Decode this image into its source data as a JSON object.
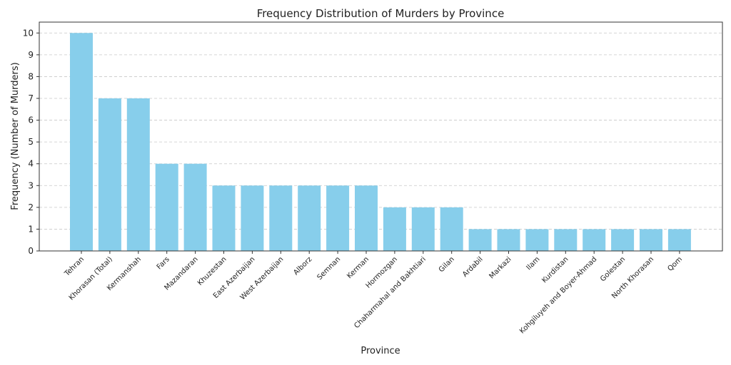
{
  "chart_data": {
    "type": "bar",
    "title": "Frequency Distribution of Murders by Province",
    "xlabel": "Province",
    "ylabel": "Frequency (Number of Murders)",
    "ylim": [
      0,
      10.5
    ],
    "yticks": [
      0,
      1,
      2,
      3,
      4,
      5,
      6,
      7,
      8,
      9,
      10
    ],
    "grid": "y-dashed",
    "bar_color": "#87ceeb",
    "categories": [
      "Tehran",
      "Khorasan (Total)",
      "Kermanshah",
      "Fars",
      "Mazandaran",
      "Khuzestan",
      "East Azerbaijan",
      "West Azerbaijan",
      "Alborz",
      "Semnan",
      "Kerman",
      "Hormozgan",
      "Chaharmahal and Bakhtiari",
      "Gilan",
      "Ardabil",
      "Markazi",
      "Ilam",
      "Kurdistan",
      "Kohgiluyeh and Boyer-Ahmad",
      "Golestan",
      "North Khorasan",
      "Qom"
    ],
    "values": [
      10,
      7,
      7,
      4,
      4,
      3,
      3,
      3,
      3,
      3,
      3,
      2,
      2,
      2,
      1,
      1,
      1,
      1,
      1,
      1,
      1,
      1
    ]
  }
}
